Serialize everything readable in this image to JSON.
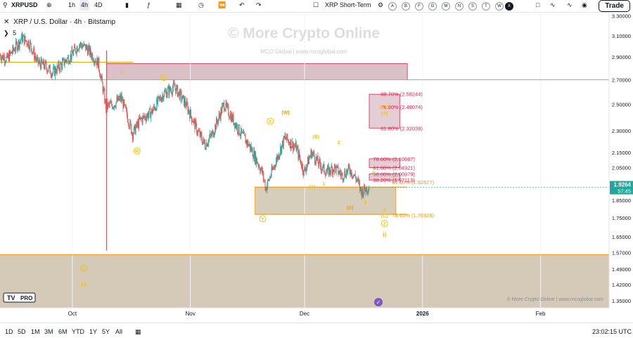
{
  "toolbar": {
    "symbol": "XRPUSD",
    "intervals": [
      "1h",
      "4h",
      "4D"
    ],
    "active_interval": "4h",
    "script_name": "XRP Short-Term",
    "letter_buttons": [
      "A",
      "B",
      "F",
      "G",
      "M",
      "N",
      "S",
      "T",
      "W",
      "X"
    ],
    "selected_letter": "X",
    "trade_label": "Trade"
  },
  "legend": {
    "title": "XRP / U.S. Dollar · 4h · Bitstamp",
    "sub": "5"
  },
  "watermark": {
    "main": "© More Crypto Online",
    "sub": "MCO Global  |  www.mcoglobal.com"
  },
  "footer_credit": "© More Crypto Online  |  www.mcoglobal.com",
  "logo_text": "PRO",
  "bottom": {
    "ranges": [
      "1D",
      "5D",
      "1M",
      "3M",
      "6M",
      "YTD",
      "1Y",
      "5Y",
      "All"
    ],
    "clock": "23:02:15 UTC"
  },
  "colors": {
    "bull": "#26a69a",
    "bear": "#ef5350",
    "wave_label": "#f0c419",
    "fib_red": "#e2234a",
    "fib_orange": "#ff9800",
    "support_fill": "#7a5a1e",
    "resistance_fill": "#7b1f3a"
  },
  "chart_data": {
    "type": "candlestick",
    "symbol": "XRP / U.S. Dollar",
    "interval": "4h",
    "exchange": "Bitstamp",
    "y_scale": "log",
    "y_range": [
      1.32,
      3.34
    ],
    "y_ticks": [
      "3.30000",
      "3.10000",
      "2.90000",
      "2.70000",
      "2.50000",
      "2.30000",
      "2.15000",
      "2.05000",
      "1.85000",
      "1.75000",
      "1.65000",
      "1.57000",
      "1.49000",
      "1.42000",
      "1.35000"
    ],
    "x_ticks": [
      "Oct",
      "Nov",
      "Dec",
      "2026",
      "Feb"
    ],
    "x_range": [
      "2025-09-12",
      "2026-02-19"
    ],
    "last_price": "1.9264",
    "countdown": "57:45",
    "price_path": [
      [
        "2025-09-12",
        2.92
      ],
      [
        "2025-09-14",
        2.88
      ],
      [
        "2025-09-16",
        2.98
      ],
      [
        "2025-09-18",
        3.08
      ],
      [
        "2025-09-20",
        3.02
      ],
      [
        "2025-09-22",
        2.85
      ],
      [
        "2025-09-24",
        2.82
      ],
      [
        "2025-09-26",
        2.76
      ],
      [
        "2025-09-28",
        2.82
      ],
      [
        "2025-10-01",
        2.92
      ],
      [
        "2025-10-03",
        3.02
      ],
      [
        "2025-10-05",
        2.98
      ],
      [
        "2025-10-08",
        2.84
      ],
      [
        "2025-10-10",
        2.48
      ],
      [
        "2025-10-12",
        2.5
      ],
      [
        "2025-10-14",
        2.55
      ],
      [
        "2025-10-17",
        2.28
      ],
      [
        "2025-10-19",
        2.38
      ],
      [
        "2025-10-22",
        2.44
      ],
      [
        "2025-10-25",
        2.58
      ],
      [
        "2025-10-28",
        2.64
      ],
      [
        "2025-10-31",
        2.5
      ],
      [
        "2025-11-03",
        2.3
      ],
      [
        "2025-11-05",
        2.2
      ],
      [
        "2025-11-07",
        2.28
      ],
      [
        "2025-11-10",
        2.5
      ],
      [
        "2025-11-12",
        2.4
      ],
      [
        "2025-11-14",
        2.3
      ],
      [
        "2025-11-17",
        2.18
      ],
      [
        "2025-11-20",
        2.02
      ],
      [
        "2025-11-21",
        1.92
      ],
      [
        "2025-11-23",
        2.05
      ],
      [
        "2025-11-26",
        2.25
      ],
      [
        "2025-11-29",
        2.18
      ],
      [
        "2025-12-01",
        2.02
      ],
      [
        "2025-12-03",
        2.15
      ],
      [
        "2025-12-05",
        2.07
      ],
      [
        "2025-12-07",
        2.02
      ],
      [
        "2025-12-09",
        2.05
      ],
      [
        "2025-12-11",
        2.0
      ],
      [
        "2025-12-13",
        2.04
      ],
      [
        "2025-12-15",
        1.97
      ],
      [
        "2025-12-16",
        1.9
      ],
      [
        "2025-12-18",
        1.93
      ]
    ],
    "price_extremes": {
      "wick_high": 3.1,
      "wick_low": 1.58,
      "wick_date": "2025-10-10"
    },
    "zones": [
      {
        "kind": "resistance",
        "from_date": "2025-10-10",
        "to_date": "2025-12-28",
        "low": 2.7,
        "high": 2.84
      },
      {
        "kind": "support_target",
        "from_date": "2025-11-18",
        "to_date": "2025-12-25",
        "low": 1.769,
        "high": 1.928
      },
      {
        "kind": "lower_support",
        "from_date": "2025-09-12",
        "to_date": "2026-02-19",
        "low": 1.32,
        "high": 1.56
      },
      {
        "kind": "fib_target",
        "from_date": "2025-12-18",
        "to_date": "2025-12-26",
        "low": 2.32,
        "high": 2.58
      },
      {
        "kind": "fib_target",
        "from_date": "2025-12-18",
        "to_date": "2025-12-26",
        "low": 2.049,
        "high": 2.107
      },
      {
        "kind": "fib_target",
        "from_date": "2025-12-18",
        "to_date": "2025-12-26",
        "low": 1.971,
        "high": 2.01
      }
    ],
    "horizontal_lines": [
      {
        "price": 2.7,
        "label": ""
      },
      {
        "price": 1.928,
        "label": "61.80% (1.92827)"
      },
      {
        "price": 1.76928,
        "label": "78.60% (1.76928)"
      },
      {
        "price": 1.56,
        "label": ""
      }
    ],
    "fib_labels": [
      {
        "text": "88.70% (2.58244)",
        "price": 2.582
      },
      {
        "text": "78.60% (2.48074)",
        "price": 2.481
      },
      {
        "text": "61.80% (2.32038)",
        "price": 2.32
      },
      {
        "text": "78.60% (2.10667)",
        "price": 2.107
      },
      {
        "text": "61.80% (2.04921)",
        "price": 2.049
      },
      {
        "text": "50.00% (2.00979)",
        "price": 2.01
      },
      {
        "text": "38.20% (1.97113)",
        "price": 1.971
      }
    ],
    "wave_labels": [
      {
        "text": "i",
        "date": "2025-10-14",
        "price": 2.76,
        "style": "roman"
      },
      {
        "text": "X",
        "date": "2025-10-25",
        "price": 2.72,
        "style": "circle"
      },
      {
        "text": "W",
        "date": "2025-10-18",
        "price": 2.16,
        "style": "circle"
      },
      {
        "text": "X",
        "date": "2025-11-22",
        "price": 2.37,
        "style": "circle"
      },
      {
        "text": "(W)",
        "date": "2025-11-26",
        "price": 2.44,
        "style": "plain"
      },
      {
        "text": "(B)",
        "date": "2025-12-04",
        "price": 2.26,
        "style": "plain"
      },
      {
        "text": "2",
        "date": "2025-12-10",
        "price": 2.22,
        "style": "plain"
      },
      {
        "text": "(A)",
        "date": "2025-12-03",
        "price": 1.93,
        "style": "plain"
      },
      {
        "text": "1",
        "date": "2025-12-06",
        "price": 1.95,
        "style": "plain"
      },
      {
        "text": "Y",
        "date": "2025-11-20",
        "price": 1.745,
        "style": "circle"
      },
      {
        "text": "4",
        "date": "2025-12-19",
        "price": 2.02,
        "style": "plain"
      },
      {
        "text": "3",
        "date": "2025-12-17",
        "price": 1.84,
        "style": "plain"
      },
      {
        "text": "(X)",
        "date": "2025-12-13",
        "price": 1.81,
        "style": "plain"
      },
      {
        "text": "5",
        "date": "2025-12-22",
        "price": 1.795,
        "style": "plain"
      },
      {
        "text": "(C)",
        "date": "2025-12-22",
        "price": 1.765,
        "style": "plain"
      },
      {
        "text": "2",
        "date": "2025-12-22",
        "price": 1.72,
        "style": "circle"
      },
      {
        "text": "ii",
        "date": "2025-12-22",
        "price": 1.66,
        "style": "roman"
      },
      {
        "text": "(X)?",
        "date": "2025-12-22",
        "price": 2.48,
        "style": "plain"
      },
      {
        "text": "(Y)",
        "date": "2025-12-22",
        "price": 2.43,
        "style": "plain"
      },
      {
        "text": "C",
        "date": "2025-10-04",
        "price": 1.495,
        "style": "circle"
      },
      {
        "text": "iv",
        "date": "2025-10-04",
        "price": 1.42,
        "style": "roman"
      }
    ]
  }
}
